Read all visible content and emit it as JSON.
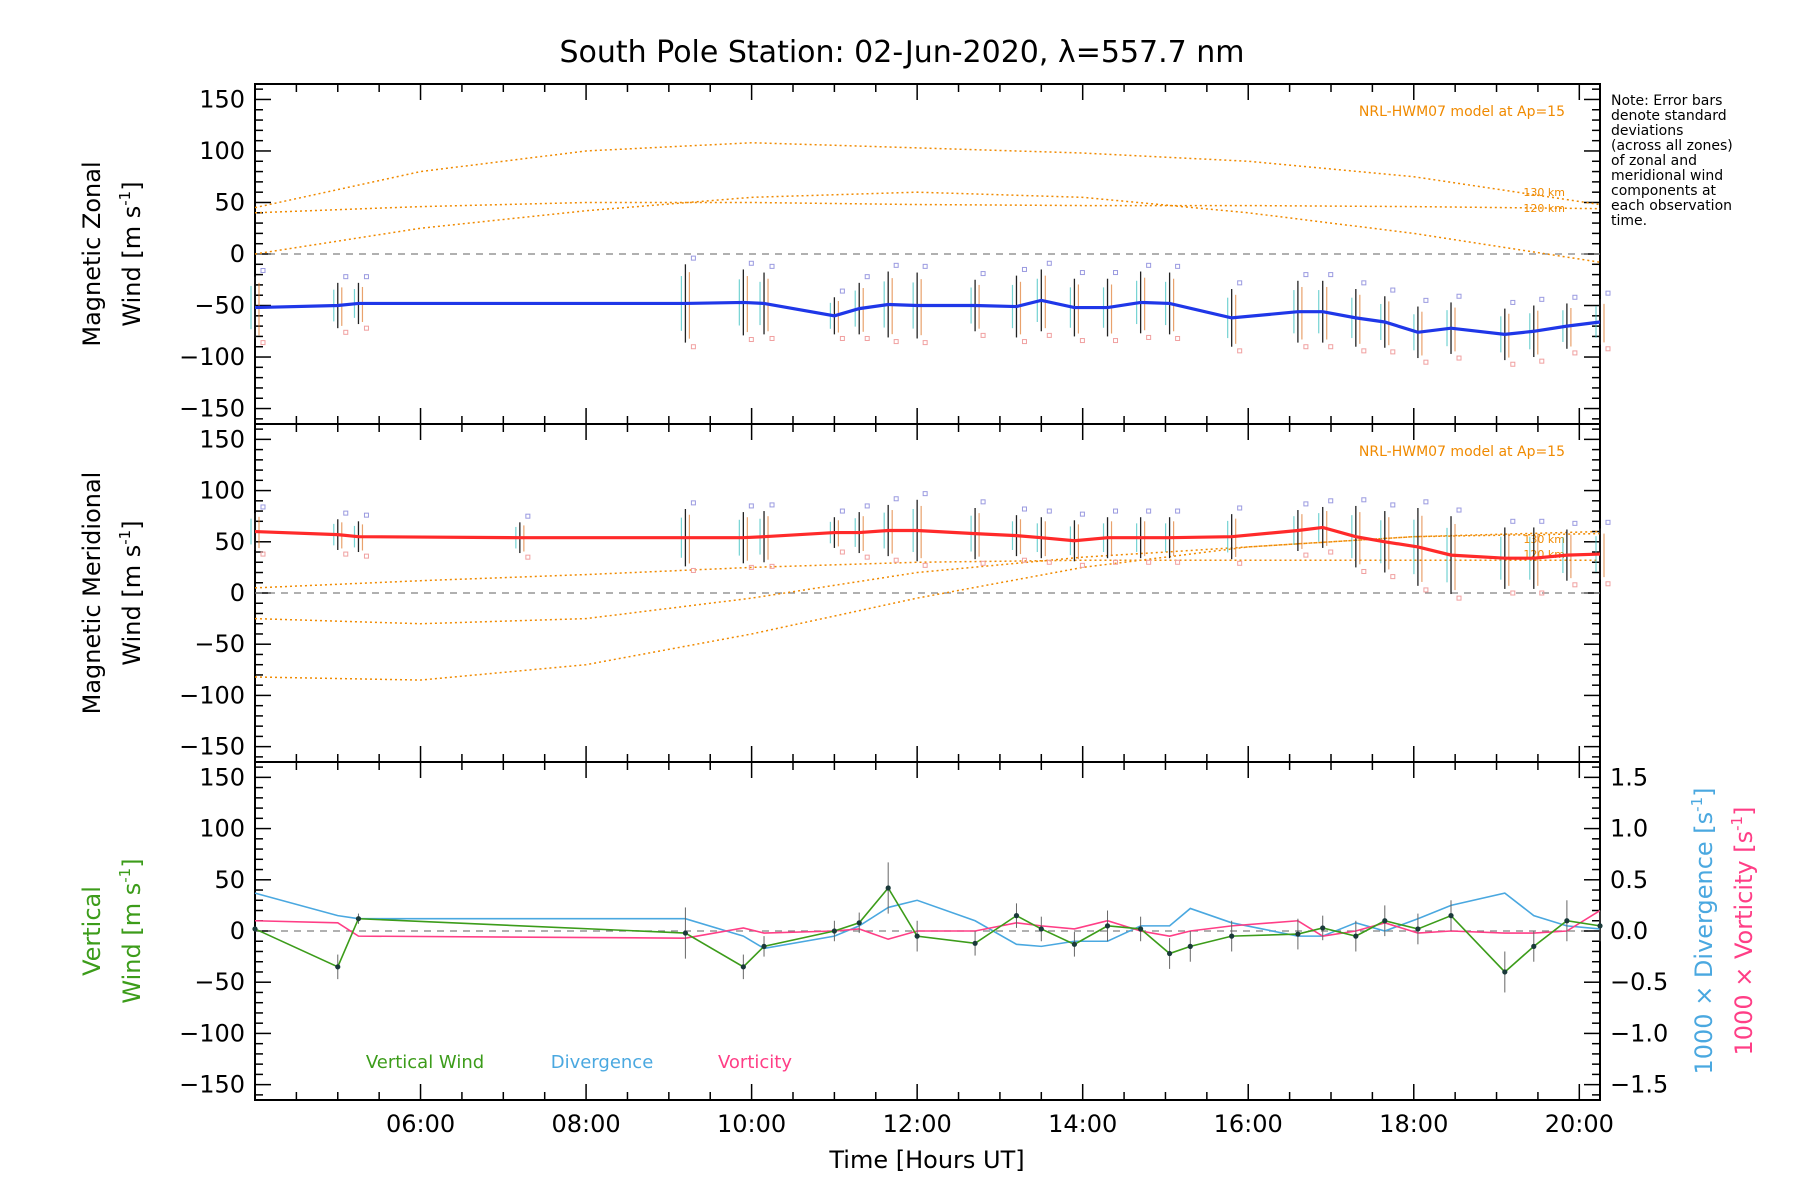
{
  "title": "South Pole Station: 02-Jun-2020, λ=557.7 nm",
  "note": "Note: Error bars\ndenote standard\ndeviations\n(across all zones)\nof zonal and\nmeridional wind\ncomponents at\neach observation\ntime.",
  "colors": {
    "zonal": "#1f37e8",
    "meridional": "#ff2a2a",
    "vertical": "#3c9c1a",
    "divergence": "#4aa8e0",
    "vorticity": "#ff3e86",
    "model": "#f08a00",
    "zero": "#808080"
  },
  "chart_data": [
    {
      "type": "line",
      "panel": "zonal",
      "ylabel_line1": "Magnetic Zonal",
      "ylabel_line2": "Wind [m s",
      "ylabel_unit_exp": "-1",
      "ylabel_close": "]",
      "xlim": [
        4.0,
        20.25
      ],
      "ylim": [
        -165,
        165
      ],
      "yticks": [
        "150",
        "100",
        "50",
        "0",
        "−50",
        "−100",
        "−150"
      ],
      "ytick_values": [
        150,
        100,
        50,
        0,
        -50,
        -100,
        -150
      ],
      "model_label": "NRL-HWM07 model at Ap=15",
      "model_level_labels": [
        "130 km",
        "120 km"
      ],
      "model_curves": [
        {
          "x": [
            4,
            6,
            8,
            10,
            12,
            14,
            16,
            18,
            20.25
          ],
          "y": [
            45,
            80,
            100,
            108,
            103,
            98,
            90,
            75,
            48
          ]
        },
        {
          "x": [
            4,
            6,
            8,
            10,
            12,
            14,
            16,
            18,
            20.25
          ],
          "y": [
            40,
            46,
            50,
            50,
            48,
            47,
            47,
            46,
            44
          ]
        },
        {
          "x": [
            4,
            6,
            8,
            10,
            12,
            14,
            16,
            18,
            20.25
          ],
          "y": [
            0,
            25,
            42,
            55,
            60,
            55,
            40,
            20,
            -8
          ]
        }
      ],
      "series": [
        {
          "name": "Zonal wind",
          "x": [
            4.0,
            5.0,
            5.25,
            9.2,
            9.9,
            10.15,
            11.0,
            11.3,
            11.65,
            12.0,
            12.7,
            13.2,
            13.5,
            13.9,
            14.3,
            14.7,
            15.05,
            15.8,
            16.6,
            16.9,
            17.3,
            17.65,
            18.05,
            18.45,
            19.1,
            19.45,
            19.85,
            20.25
          ],
          "y": [
            -52,
            -50,
            -48,
            -48,
            -47,
            -48,
            -60,
            -53,
            -49,
            -50,
            -50,
            -51,
            -45,
            -52,
            -52,
            -47,
            -48,
            -62,
            -56,
            -56,
            -62,
            -66,
            -76,
            -72,
            -78,
            -75,
            -70,
            -66
          ],
          "err": [
            30,
            22,
            20,
            38,
            32,
            30,
            18,
            25,
            32,
            32,
            25,
            30,
            30,
            28,
            28,
            30,
            30,
            28,
            30,
            30,
            28,
            25,
            25,
            25,
            25,
            25,
            22,
            22
          ]
        }
      ]
    },
    {
      "type": "line",
      "panel": "meridional",
      "ylabel_line1": "Magnetic Meridional",
      "ylabel_line2": "Wind [m s",
      "ylabel_unit_exp": "-1",
      "ylabel_close": "]",
      "xlim": [
        4.0,
        20.25
      ],
      "ylim": [
        -165,
        165
      ],
      "yticks": [
        "150",
        "100",
        "50",
        "0",
        "−50",
        "−100",
        "−150"
      ],
      "ytick_values": [
        150,
        100,
        50,
        0,
        -50,
        -100,
        -150
      ],
      "model_label": "NRL-HWM07 model at Ap=15",
      "model_level_labels": [
        "130 km",
        "120 km"
      ],
      "model_curves": [
        {
          "x": [
            4,
            6,
            8,
            10,
            12,
            14,
            16,
            18,
            20.25
          ],
          "y": [
            5,
            12,
            18,
            25,
            30,
            32,
            32,
            32,
            32
          ]
        },
        {
          "x": [
            4,
            6,
            8,
            10,
            12,
            14,
            16,
            18,
            20.25
          ],
          "y": [
            -25,
            -30,
            -25,
            -5,
            20,
            35,
            45,
            55,
            60
          ]
        },
        {
          "x": [
            4,
            6,
            8,
            10,
            12,
            14,
            16,
            18,
            20.25
          ],
          "y": [
            -82,
            -85,
            -70,
            -40,
            -5,
            25,
            45,
            55,
            58
          ]
        }
      ],
      "series": [
        {
          "name": "Meridional wind",
          "x": [
            4.0,
            5.0,
            5.25,
            7.2,
            9.2,
            9.9,
            10.15,
            11.0,
            11.3,
            11.65,
            12.0,
            12.7,
            13.2,
            13.5,
            13.9,
            14.3,
            14.7,
            15.05,
            15.8,
            16.6,
            16.9,
            17.3,
            17.65,
            18.05,
            18.45,
            19.1,
            19.45,
            19.85,
            20.25
          ],
          "y": [
            60,
            57,
            55,
            54,
            54,
            54,
            55,
            59,
            59,
            61,
            61,
            58,
            56,
            54,
            51,
            54,
            54,
            54,
            55,
            61,
            64,
            55,
            50,
            45,
            37,
            34,
            34,
            37,
            38
          ],
          "err": [
            18,
            15,
            15,
            15,
            28,
            25,
            25,
            15,
            20,
            25,
            30,
            25,
            20,
            20,
            20,
            20,
            20,
            20,
            22,
            20,
            20,
            30,
            30,
            38,
            38,
            30,
            30,
            25,
            25
          ]
        }
      ]
    },
    {
      "type": "line",
      "panel": "vertical",
      "ylabel_line1": "Vertical",
      "ylabel_line2": "Wind [m s",
      "ylabel_unit_exp": "-1",
      "ylabel_close": "]",
      "right_label_div": "1000 × Divergence [s",
      "right_label_vort": "1000 × Vorticity [s",
      "right_unit_exp": "-1",
      "right_close": "]",
      "xlim": [
        4.0,
        20.25
      ],
      "ylim": [
        -165,
        165
      ],
      "y2lim": [
        -1.65,
        1.65
      ],
      "yticks": [
        "150",
        "100",
        "50",
        "0",
        "−50",
        "−100",
        "−150"
      ],
      "ytick_values": [
        150,
        100,
        50,
        0,
        -50,
        -100,
        -150
      ],
      "y2ticks": [
        "1.5",
        "1.0",
        "0.5",
        "0.0",
        "−0.5",
        "−1.0",
        "−1.5"
      ],
      "y2tick_values": [
        1.5,
        1.0,
        0.5,
        0.0,
        -0.5,
        -1.0,
        -1.5
      ],
      "xticks": [
        "06:00",
        "08:00",
        "10:00",
        "12:00",
        "14:00",
        "16:00",
        "18:00",
        "20:00"
      ],
      "xtick_values": [
        6,
        8,
        10,
        12,
        14,
        16,
        18,
        20
      ],
      "xlabel": "Time [Hours UT]",
      "legend": [
        "Vertical Wind",
        "Divergence",
        "Vorticity"
      ],
      "vertical": {
        "x": [
          4.0,
          5.0,
          5.25,
          9.2,
          9.9,
          10.15,
          11.0,
          11.3,
          11.65,
          12.0,
          12.7,
          13.2,
          13.5,
          13.9,
          14.3,
          14.7,
          15.05,
          15.3,
          15.8,
          16.6,
          16.9,
          17.3,
          17.65,
          18.05,
          18.45,
          19.1,
          19.45,
          19.85,
          20.25
        ],
        "y": [
          2,
          -35,
          12,
          -2,
          -35,
          -15,
          0,
          8,
          42,
          -5,
          -12,
          15,
          2,
          -13,
          5,
          2,
          -22,
          -15,
          -5,
          -3,
          3,
          -5,
          10,
          2,
          15,
          -40,
          -15,
          10,
          5
        ],
        "err": [
          0,
          12,
          5,
          25,
          12,
          10,
          10,
          10,
          25,
          15,
          12,
          12,
          12,
          12,
          15,
          12,
          15,
          15,
          15,
          15,
          12,
          15,
          15,
          15,
          15,
          20,
          15,
          20,
          15
        ]
      },
      "divergence": {
        "x": [
          4.0,
          5.0,
          5.25,
          9.2,
          9.9,
          10.15,
          11.0,
          11.3,
          11.65,
          12.0,
          12.7,
          13.2,
          13.5,
          13.9,
          14.3,
          14.7,
          15.05,
          15.3,
          15.8,
          16.6,
          16.9,
          17.3,
          17.65,
          18.05,
          18.45,
          19.1,
          19.45,
          19.85,
          20.25
        ],
        "y": [
          0.37,
          0.15,
          0.12,
          0.12,
          -0.05,
          -0.17,
          -0.05,
          0.05,
          0.23,
          0.3,
          0.1,
          -0.13,
          -0.15,
          -0.1,
          -0.1,
          0.05,
          0.05,
          0.22,
          0.08,
          -0.05,
          -0.05,
          0.08,
          0.0,
          0.12,
          0.25,
          0.37,
          0.15,
          0.05,
          0.02
        ]
      },
      "vorticity": {
        "x": [
          4.0,
          5.0,
          5.25,
          9.2,
          9.9,
          10.15,
          11.0,
          11.3,
          11.65,
          12.0,
          12.7,
          13.2,
          13.5,
          13.9,
          14.3,
          14.7,
          15.05,
          15.3,
          15.8,
          16.6,
          16.9,
          17.3,
          17.65,
          18.05,
          18.45,
          19.1,
          19.45,
          19.85,
          20.25
        ],
        "y": [
          0.1,
          0.08,
          -0.05,
          -0.07,
          0.03,
          -0.02,
          0.0,
          0.02,
          -0.08,
          0.0,
          0.0,
          0.08,
          0.05,
          0.02,
          0.1,
          0.0,
          -0.05,
          0.0,
          0.05,
          0.1,
          -0.05,
          0.0,
          0.08,
          -0.02,
          0.0,
          -0.02,
          -0.02,
          0.0,
          0.2
        ]
      }
    }
  ]
}
